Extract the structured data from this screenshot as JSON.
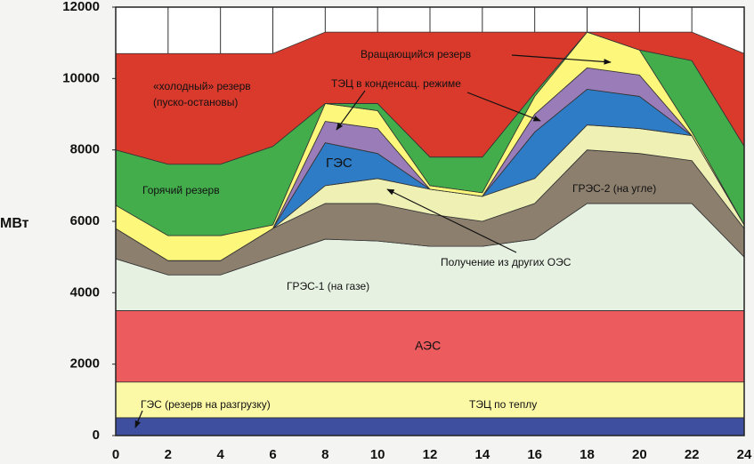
{
  "chart_data": {
    "type": "stacked_area",
    "ylabel": "МВт",
    "x": [
      0,
      2,
      4,
      6,
      8,
      10,
      12,
      14,
      16,
      18,
      20,
      22,
      24
    ],
    "xlim": [
      0,
      24
    ],
    "xticks": [
      0,
      2,
      4,
      6,
      8,
      10,
      12,
      14,
      16,
      18,
      20,
      22,
      24
    ],
    "ylim": [
      0,
      12000
    ],
    "yticks": [
      0,
      2000,
      4000,
      6000,
      8000,
      10000,
      12000
    ],
    "series": [
      {
        "name": "ГЭС (резерв на разгрузку)",
        "color": "#3f4fa0",
        "values": [
          500,
          500,
          500,
          500,
          500,
          500,
          500,
          500,
          500,
          500,
          500,
          500,
          500
        ]
      },
      {
        "name": "ТЭЦ по теплу",
        "color": "#fbf9a6",
        "values": [
          1000,
          1000,
          1000,
          1000,
          1000,
          1000,
          1000,
          1000,
          1000,
          1000,
          1000,
          1000,
          1000
        ]
      },
      {
        "name": "АЭС",
        "color": "#ec5b5e",
        "values": [
          2000,
          2000,
          2000,
          2000,
          2000,
          2000,
          2000,
          2000,
          2000,
          2000,
          2000,
          2000,
          2000
        ]
      },
      {
        "name": "ГРЭС-1 (на газе)",
        "color": "#e6f1e2",
        "values": [
          1450,
          1000,
          1000,
          1500,
          2000,
          1950,
          1800,
          1800,
          2000,
          3000,
          3000,
          3000,
          1500
        ]
      },
      {
        "name": "ГРЭС-2 (на угле)",
        "color": "#8c7f6e",
        "values": [
          850,
          400,
          400,
          800,
          1000,
          1050,
          900,
          700,
          1000,
          1500,
          1400,
          1200,
          800
        ]
      },
      {
        "name": "Получение из других ОЭС",
        "color": "#eef0b4",
        "values": [
          0,
          0,
          0,
          0,
          500,
          700,
          700,
          700,
          700,
          700,
          700,
          700,
          100
        ]
      },
      {
        "name": "ГЭС",
        "color": "#2f7cc6",
        "values": [
          0,
          0,
          0,
          0,
          1200,
          700,
          0,
          0,
          1300,
          1000,
          900,
          0,
          0
        ]
      },
      {
        "name": "ТЭЦ в конденсац. режиме",
        "color": "#9a7db8",
        "values": [
          0,
          0,
          0,
          0,
          600,
          700,
          0,
          0,
          500,
          600,
          600,
          0,
          0
        ]
      },
      {
        "name": "Вращающийся резерв",
        "color": "#fdf77c",
        "values": [
          650,
          700,
          700,
          100,
          500,
          500,
          100,
          100,
          500,
          1000,
          700,
          100,
          0
        ]
      },
      {
        "name": "Горячий резерв",
        "color": "#43ad4c",
        "values": [
          1550,
          2000,
          2000,
          2200,
          0,
          200,
          800,
          1000,
          100,
          0,
          0,
          2000,
          2200
        ]
      },
      {
        "name": "«холодный» резерв",
        "color": "#d93a2c",
        "values": [
          2700,
          3100,
          3100,
          2600,
          2000,
          2000,
          3500,
          3500,
          1700,
          0,
          500,
          800,
          2600
        ]
      }
    ],
    "annotations": [
      "«холодный» резерв",
      "(пуско-остановы)",
      "Вращающийся резерв",
      "ТЭЦ в конденсац. режиме",
      "ГЭС",
      "Горячий резерв",
      "ГРЭС-2 (на угле)",
      "Получение из других ОЭС",
      "ГРЭС-1 (на газе)",
      "АЭС",
      "ГЭС (резерв на разгрузку)",
      "ТЭЦ по теплу"
    ]
  }
}
